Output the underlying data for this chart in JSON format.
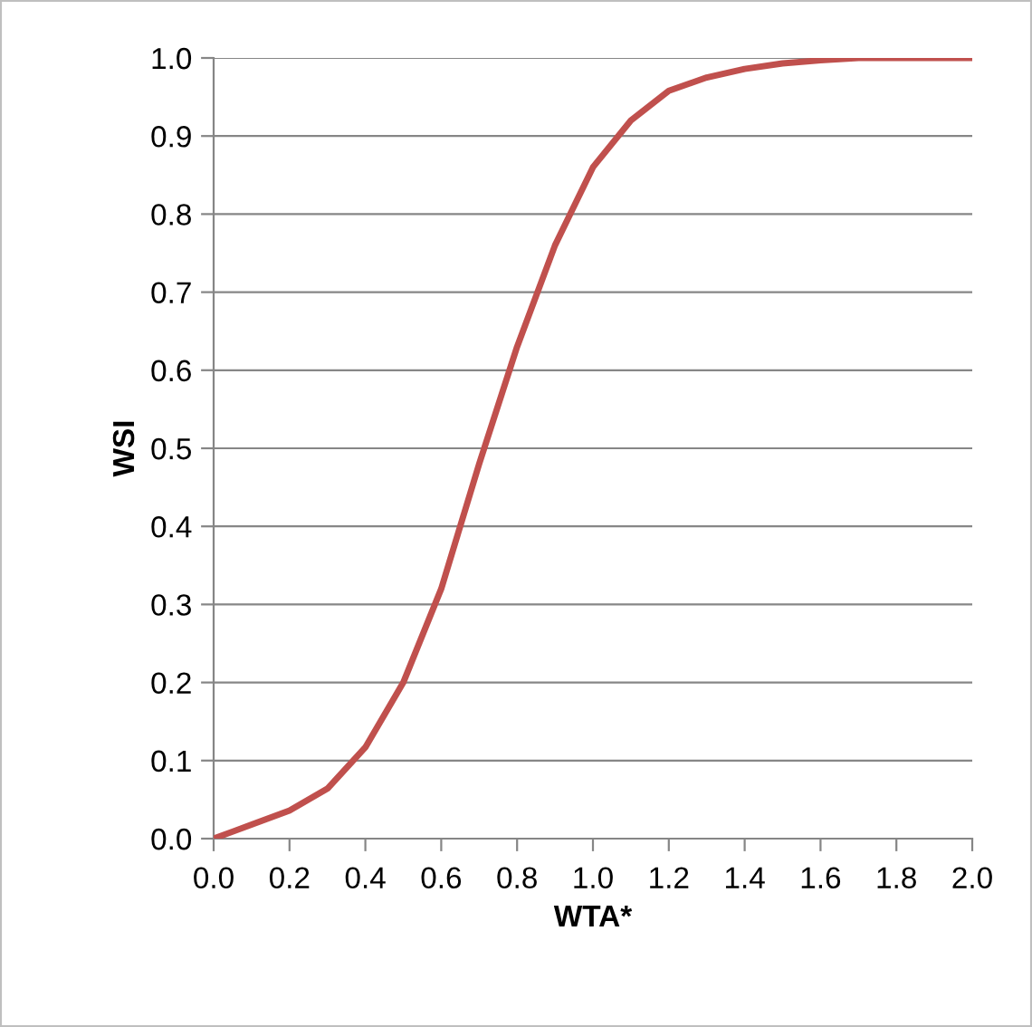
{
  "chart_data": {
    "type": "line",
    "xlabel": "WTA*",
    "ylabel": "WSI",
    "x": [
      0.0,
      0.1,
      0.2,
      0.3,
      0.4,
      0.5,
      0.6,
      0.7,
      0.8,
      0.9,
      1.0,
      1.1,
      1.2,
      1.3,
      1.4,
      1.5,
      1.6,
      1.7,
      1.8,
      1.9,
      2.0
    ],
    "series": [
      {
        "color": "#c0504d",
        "values": [
          0.0,
          0.018,
          0.036,
          0.064,
          0.117,
          0.2,
          0.32,
          0.48,
          0.63,
          0.76,
          0.86,
          0.92,
          0.958,
          0.975,
          0.986,
          0.993,
          0.997,
          1.0,
          1.0,
          1.0,
          1.0
        ]
      }
    ],
    "xlim": [
      0.0,
      2.0
    ],
    "ylim": [
      0.0,
      1.0
    ],
    "xticks": [
      {
        "value": 0.0,
        "label": "0.0"
      },
      {
        "value": 0.2,
        "label": "0.2"
      },
      {
        "value": 0.4,
        "label": "0.4"
      },
      {
        "value": 0.6,
        "label": "0.6"
      },
      {
        "value": 0.8,
        "label": "0.8"
      },
      {
        "value": 1.0,
        "label": "1.0"
      },
      {
        "value": 1.2,
        "label": "1.2"
      },
      {
        "value": 1.4,
        "label": "1.4"
      },
      {
        "value": 1.6,
        "label": "1.6"
      },
      {
        "value": 1.8,
        "label": "1.8"
      },
      {
        "value": 2.0,
        "label": "2.0"
      }
    ],
    "yticks": [
      {
        "value": 0.0,
        "label": "0.0"
      },
      {
        "value": 0.1,
        "label": "0.1"
      },
      {
        "value": 0.2,
        "label": "0.2"
      },
      {
        "value": 0.3,
        "label": "0.3"
      },
      {
        "value": 0.4,
        "label": "0.4"
      },
      {
        "value": 0.5,
        "label": "0.5"
      },
      {
        "value": 0.6,
        "label": "0.6"
      },
      {
        "value": 0.7,
        "label": "0.7"
      },
      {
        "value": 0.8,
        "label": "0.8"
      },
      {
        "value": 0.9,
        "label": "0.9"
      },
      {
        "value": 1.0,
        "label": "1.0"
      }
    ],
    "grid": "y",
    "marker": "none",
    "line_style": "solid"
  }
}
